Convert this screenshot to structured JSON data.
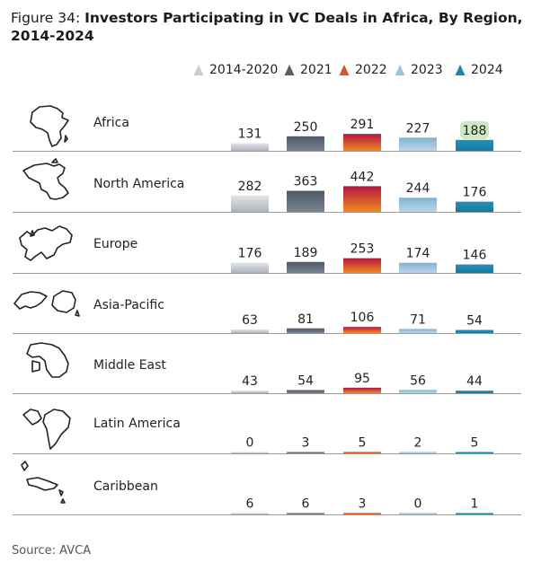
{
  "figure": {
    "label": "Figure 34: ",
    "title": "Investors Participating in VC Deals in Africa, By Region, 2014-2024"
  },
  "source": "Source: AVCA",
  "chart_data": {
    "type": "bar",
    "categories": [
      "Africa",
      "North America",
      "Europe",
      "Asia-Pacific",
      "Middle East",
      "Latin America",
      "Caribbean"
    ],
    "series": [
      {
        "name": "2014-2020",
        "values": [
          131,
          282,
          176,
          63,
          43,
          0,
          6
        ],
        "color": "#c9ccd2",
        "gradient": [
          "#e2e4e8",
          "#aeb3bb"
        ]
      },
      {
        "name": "2021",
        "values": [
          250,
          363,
          189,
          81,
          54,
          3,
          6
        ],
        "color": "#56606e",
        "gradient": [
          "#4e5866",
          "#7a8390"
        ]
      },
      {
        "name": "2022",
        "values": [
          291,
          442,
          253,
          106,
          95,
          5,
          3
        ],
        "color": "#e0502a",
        "gradient": [
          "#b5163e",
          "#f08a22"
        ]
      },
      {
        "name": "2023",
        "values": [
          227,
          244,
          174,
          71,
          56,
          2,
          0
        ],
        "color": "#9ec3dc",
        "gradient": [
          "#80b2d2",
          "#bcd6e7"
        ]
      },
      {
        "name": "2024",
        "values": [
          188,
          176,
          146,
          54,
          44,
          5,
          1
        ],
        "color": "#1d85a8",
        "gradient": [
          "#2a8fb5",
          "#157aa0"
        ]
      }
    ],
    "highlight": {
      "series": "2024",
      "category": "Africa",
      "color": "#cfe8c4"
    },
    "icons": [
      "africa-map-icon",
      "north-america-map-icon",
      "europe-map-icon",
      "asia-pacific-map-icon",
      "middle-east-map-icon",
      "latin-america-map-icon",
      "caribbean-map-icon"
    ],
    "grid": false,
    "legend_position": "top"
  }
}
